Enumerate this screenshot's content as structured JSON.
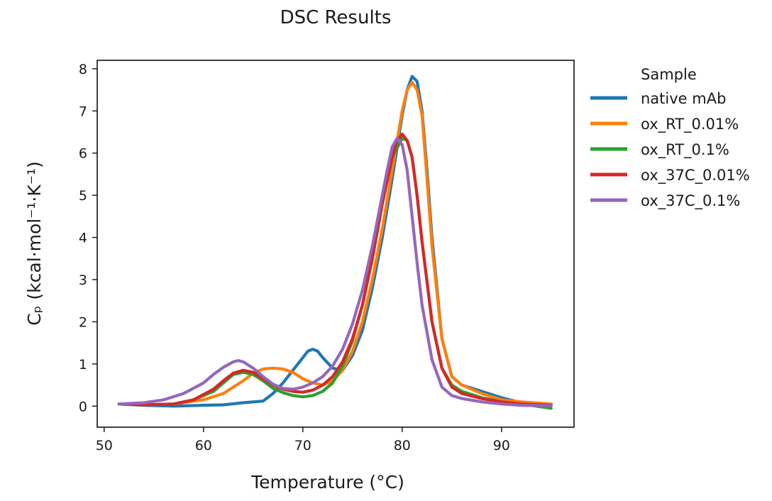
{
  "chart_data": {
    "type": "line",
    "title": "DSC Results",
    "xlabel": "Temperature (°C)",
    "ylabel": "Cₚ (kcal·mol⁻¹·K⁻¹)",
    "xlim": [
      49.3,
      97.3
    ],
    "ylim": [
      -0.5,
      8.2
    ],
    "xticks": [
      50,
      60,
      70,
      80,
      90
    ],
    "yticks": [
      0,
      1,
      2,
      3,
      4,
      5,
      6,
      7,
      8
    ],
    "grid": false,
    "legend": {
      "title": "Sample",
      "position": "outside-right"
    },
    "series": [
      {
        "name": "native mAb",
        "color": "#1f77b4",
        "x": [
          51.5,
          54,
          57,
          60,
          62,
          64,
          66,
          67,
          68,
          69,
          70,
          70.5,
          71,
          71.5,
          72,
          73,
          74,
          75,
          76,
          77,
          78,
          79,
          80,
          80.5,
          81,
          81.5,
          82,
          82.5,
          83,
          84,
          85,
          86,
          88,
          90,
          92,
          95
        ],
        "y": [
          0.05,
          0.02,
          0.0,
          0.02,
          0.03,
          0.08,
          0.12,
          0.3,
          0.55,
          0.85,
          1.15,
          1.3,
          1.35,
          1.3,
          1.15,
          0.9,
          0.85,
          1.2,
          1.8,
          2.8,
          4.0,
          5.4,
          6.9,
          7.5,
          7.82,
          7.7,
          7.0,
          5.6,
          4.0,
          1.6,
          0.7,
          0.5,
          0.35,
          0.2,
          0.08,
          0.03
        ]
      },
      {
        "name": "ox_RT_0.01%",
        "color": "#ff7f0e",
        "x": [
          51.5,
          54,
          57,
          60,
          62,
          63,
          64,
          65,
          66,
          67,
          68,
          69,
          70,
          71,
          72,
          73,
          74,
          75,
          76,
          77,
          78,
          79,
          80,
          80.5,
          81,
          81.5,
          82,
          82.5,
          83,
          84,
          85,
          86,
          88,
          90,
          92,
          95
        ],
        "y": [
          0.05,
          0.03,
          0.05,
          0.15,
          0.3,
          0.45,
          0.6,
          0.78,
          0.88,
          0.9,
          0.88,
          0.8,
          0.65,
          0.55,
          0.5,
          0.6,
          0.85,
          1.3,
          2.0,
          3.0,
          4.2,
          5.6,
          7.0,
          7.5,
          7.68,
          7.5,
          6.9,
          5.4,
          3.8,
          1.6,
          0.7,
          0.5,
          0.3,
          0.15,
          0.1,
          0.05
        ]
      },
      {
        "name": "ox_RT_0.1%",
        "color": "#2ca02c",
        "x": [
          51.5,
          54,
          57,
          59,
          61,
          62,
          63,
          64,
          65,
          66,
          67,
          68,
          69,
          70,
          71,
          72,
          73,
          74,
          75,
          76,
          77,
          78,
          79,
          80,
          80.5,
          81,
          81.5,
          82,
          83,
          84,
          85,
          86,
          88,
          90,
          92,
          95
        ],
        "y": [
          0.05,
          0.03,
          0.05,
          0.15,
          0.35,
          0.55,
          0.75,
          0.8,
          0.75,
          0.6,
          0.42,
          0.32,
          0.25,
          0.22,
          0.25,
          0.35,
          0.55,
          0.95,
          1.55,
          2.4,
          3.5,
          4.8,
          5.9,
          6.35,
          6.3,
          5.9,
          5.0,
          3.9,
          2.0,
          0.9,
          0.5,
          0.35,
          0.2,
          0.1,
          0.05,
          -0.05
        ]
      },
      {
        "name": "ox_37C_0.01%",
        "color": "#d62728",
        "x": [
          51.5,
          54,
          57,
          59,
          61,
          62,
          63,
          64,
          65,
          66,
          67,
          68,
          69,
          70,
          71,
          72,
          73,
          74,
          75,
          76,
          77,
          78,
          79,
          79.5,
          80,
          80.5,
          81,
          81.5,
          82,
          83,
          84,
          85,
          86,
          88,
          90,
          92,
          95
        ],
        "y": [
          0.05,
          0.03,
          0.05,
          0.15,
          0.4,
          0.6,
          0.78,
          0.85,
          0.8,
          0.65,
          0.5,
          0.4,
          0.35,
          0.33,
          0.38,
          0.5,
          0.7,
          1.05,
          1.6,
          2.4,
          3.5,
          4.8,
          5.9,
          6.3,
          6.45,
          6.3,
          5.9,
          5.0,
          3.9,
          2.0,
          0.9,
          0.45,
          0.3,
          0.18,
          0.1,
          0.05,
          0.02
        ]
      },
      {
        "name": "ox_37C_0.1%",
        "color": "#9467bd",
        "x": [
          51.5,
          54,
          56,
          58,
          60,
          61,
          62,
          63,
          63.5,
          64,
          65,
          66,
          67,
          68,
          69,
          70,
          71,
          72,
          73,
          74,
          75,
          76,
          77,
          78,
          78.5,
          79,
          79.5,
          80,
          80.5,
          81,
          81.5,
          82,
          83,
          84,
          85,
          86,
          88,
          90,
          92,
          95
        ],
        "y": [
          0.05,
          0.08,
          0.15,
          0.3,
          0.55,
          0.75,
          0.92,
          1.05,
          1.08,
          1.05,
          0.9,
          0.7,
          0.52,
          0.42,
          0.4,
          0.45,
          0.55,
          0.7,
          0.95,
          1.35,
          1.95,
          2.75,
          3.8,
          5.0,
          5.6,
          6.15,
          6.35,
          6.2,
          5.6,
          4.5,
          3.4,
          2.4,
          1.1,
          0.45,
          0.25,
          0.18,
          0.1,
          0.05,
          0.02,
          0.01
        ]
      }
    ]
  }
}
